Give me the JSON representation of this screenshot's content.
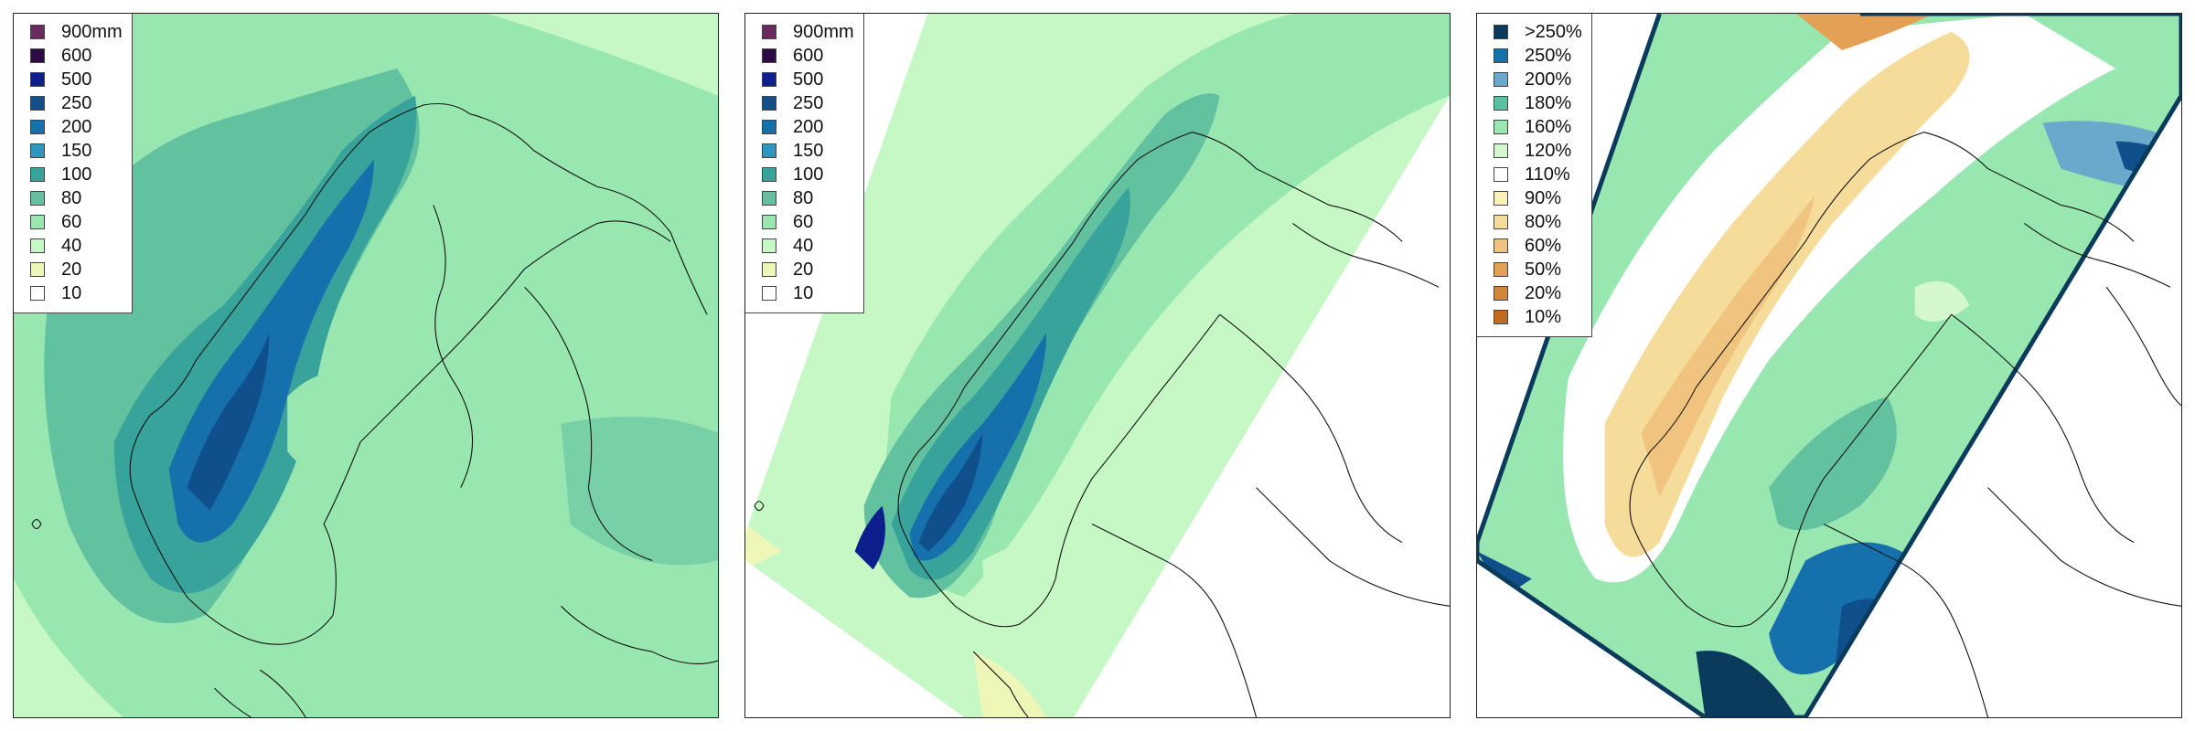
{
  "panels": [
    {
      "id": "precip-large-domain",
      "legend": [
        {
          "label": "900mm",
          "color": "#6b2a5e"
        },
        {
          "label": "600",
          "color": "#2b0a45"
        },
        {
          "label": "500",
          "color": "#0c1f8c"
        },
        {
          "label": "250",
          "color": "#0e4f8c"
        },
        {
          "label": "200",
          "color": "#1670ac"
        },
        {
          "label": "150",
          "color": "#2f97bf"
        },
        {
          "label": "100",
          "color": "#38a39b"
        },
        {
          "label": "80",
          "color": "#62c2a0"
        },
        {
          "label": "60",
          "color": "#98e6b0"
        },
        {
          "label": "40",
          "color": "#c6f8c6"
        },
        {
          "label": "20",
          "color": "#eef7b8"
        },
        {
          "label": "10",
          "color": "#ffffff"
        }
      ]
    },
    {
      "id": "precip-rotated-domain",
      "legend": [
        {
          "label": "900mm",
          "color": "#6b2a5e"
        },
        {
          "label": "600",
          "color": "#2b0a45"
        },
        {
          "label": "500",
          "color": "#0c1f8c"
        },
        {
          "label": "250",
          "color": "#0e4f8c"
        },
        {
          "label": "200",
          "color": "#1670ac"
        },
        {
          "label": "150",
          "color": "#2f97bf"
        },
        {
          "label": "100",
          "color": "#38a39b"
        },
        {
          "label": "80",
          "color": "#62c2a0"
        },
        {
          "label": "60",
          "color": "#98e6b0"
        },
        {
          "label": "40",
          "color": "#c6f8c6"
        },
        {
          "label": "20",
          "color": "#eef7b8"
        },
        {
          "label": "10",
          "color": "#ffffff"
        }
      ]
    },
    {
      "id": "precip-ratio",
      "legend": [
        {
          "label": ">250%",
          "color": "#0a3a5c"
        },
        {
          "label": "250%",
          "color": "#1670ac"
        },
        {
          "label": "200%",
          "color": "#6aa9cc"
        },
        {
          "label": "180%",
          "color": "#5cc0a5"
        },
        {
          "label": "160%",
          "color": "#98e6b0"
        },
        {
          "label": "120%",
          "color": "#d4f7cf"
        },
        {
          "label": "110%",
          "color": "#ffffff"
        },
        {
          "label": "90%",
          "color": "#fbf0b8"
        },
        {
          "label": "80%",
          "color": "#f5dc9a"
        },
        {
          "label": "60%",
          "color": "#f0c47e"
        },
        {
          "label": "50%",
          "color": "#e4a055"
        },
        {
          "label": "20%",
          "color": "#d6863a"
        },
        {
          "label": "10%",
          "color": "#c06a22"
        }
      ]
    }
  ]
}
